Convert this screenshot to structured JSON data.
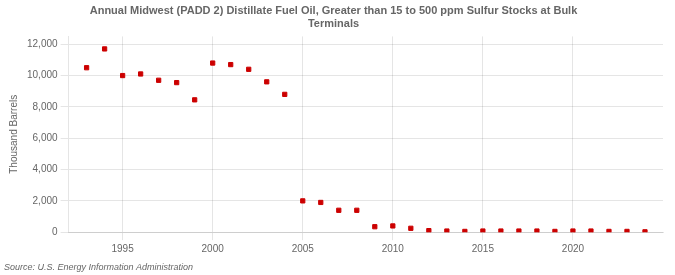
{
  "chart_data": {
    "type": "scatter",
    "title": "Annual Midwest (PADD 2) Distillate Fuel Oil, Greater than 15 to 500 ppm Sulfur Stocks at Bulk\nTerminals",
    "ylabel": "Thousand Barrels",
    "annotations": [
      "Source: U.S. Energy Information Administration"
    ],
    "x": [
      1993,
      1994,
      1995,
      1996,
      1997,
      1998,
      1999,
      2000,
      2001,
      2002,
      2003,
      2004,
      2005,
      2006,
      2007,
      2008,
      2009,
      2010,
      2011,
      2012,
      2013,
      2014,
      2015,
      2016,
      2017,
      2018,
      2019,
      2020,
      2021,
      2022,
      2023,
      2024
    ],
    "values": [
      10500,
      11700,
      10000,
      10100,
      9700,
      9550,
      8450,
      10800,
      10700,
      10400,
      9600,
      8800,
      2000,
      1900,
      1400,
      1400,
      350,
      400,
      250,
      100,
      75,
      50,
      75,
      75,
      75,
      75,
      50,
      75,
      75,
      50,
      50,
      25
    ],
    "color": "#cc0000",
    "marker": "square",
    "xlim": [
      1992,
      2025
    ],
    "xticks": [
      1995,
      2000,
      2005,
      2010,
      2015,
      2020
    ],
    "ylim": [
      0,
      12500
    ],
    "yticks": [
      0,
      {
        "value": 2000,
        "label": "2,000"
      },
      {
        "value": 4000,
        "label": "4,000"
      },
      {
        "value": 6000,
        "label": "6,000"
      },
      {
        "value": 8000,
        "label": "8,000"
      },
      {
        "value": 10000,
        "label": "10,000"
      },
      {
        "value": 12000,
        "label": "12,000"
      }
    ],
    "grid": true
  }
}
